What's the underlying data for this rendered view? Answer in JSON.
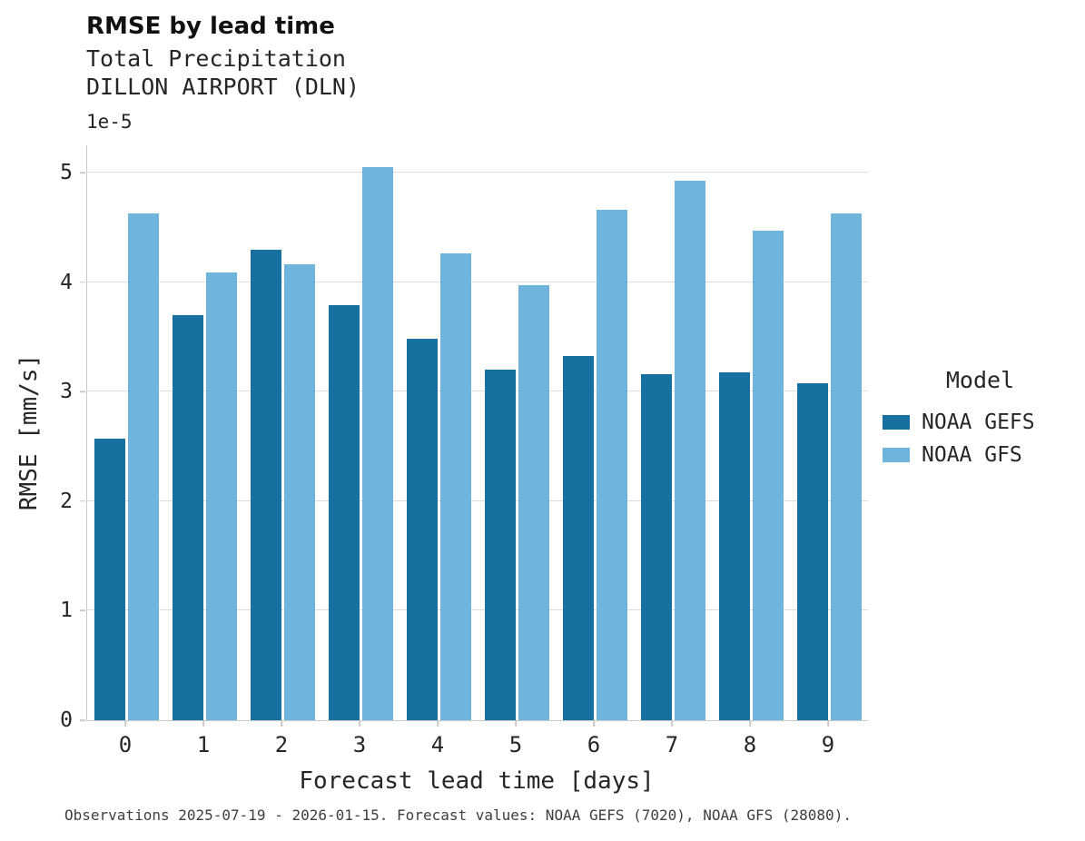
{
  "chart_data": {
    "type": "bar",
    "title": "RMSE by lead time",
    "subtitle": [
      "Total Precipitation",
      "DILLON AIRPORT (DLN)"
    ],
    "xlabel": "Forecast lead time [days]",
    "ylabel": "RMSE [mm/s]",
    "y_scale_label": "1e-5",
    "categories": [
      "0",
      "1",
      "2",
      "3",
      "4",
      "5",
      "6",
      "7",
      "8",
      "9"
    ],
    "series": [
      {
        "name": "NOAA GEFS",
        "color": "#17709f",
        "values": [
          2.57,
          3.7,
          4.3,
          3.79,
          3.48,
          3.2,
          3.33,
          3.16,
          3.18,
          3.08
        ]
      },
      {
        "name": "NOAA GFS",
        "color": "#6fb4dc",
        "values": [
          4.63,
          4.09,
          4.16,
          5.05,
          4.26,
          3.97,
          4.66,
          4.93,
          4.47,
          4.63
        ]
      }
    ],
    "yticks": [
      0,
      1,
      2,
      3,
      4,
      5
    ],
    "ylim": [
      0,
      5.25
    ],
    "grid": "horizontal",
    "legend_title": "Model",
    "legend_position": "right",
    "caption": "Observations 2025-07-19 - 2026-01-15. Forecast values: NOAA GEFS (7020), NOAA GFS (28080)."
  }
}
